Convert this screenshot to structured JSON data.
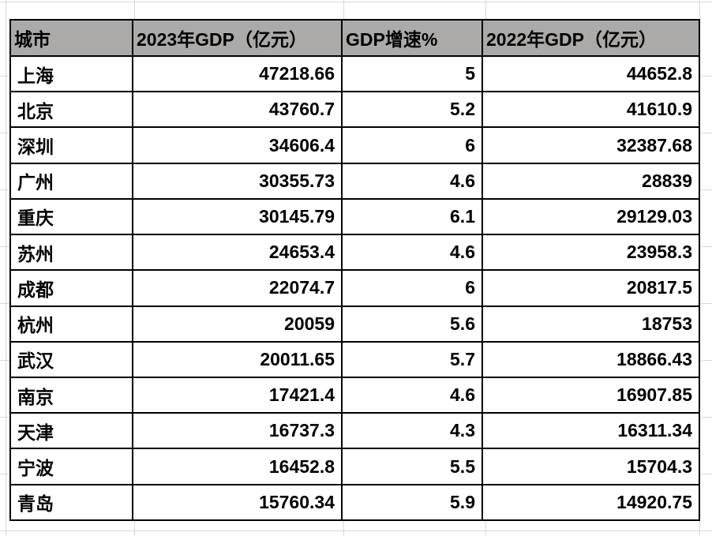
{
  "table": {
    "columns": [
      "城市",
      "2023年GDP（亿元）",
      "GDP增速%",
      "2022年GDP（亿元）"
    ],
    "rows": [
      [
        "上海",
        "47218.66",
        "5",
        "44652.8"
      ],
      [
        "北京",
        "43760.7",
        "5.2",
        "41610.9"
      ],
      [
        "深圳",
        "34606.4",
        "6",
        "32387.68"
      ],
      [
        "广州",
        "30355.73",
        "4.6",
        "28839"
      ],
      [
        "重庆",
        "30145.79",
        "6.1",
        "29129.03"
      ],
      [
        "苏州",
        "24653.4",
        "4.6",
        "23958.3"
      ],
      [
        "成都",
        "22074.7",
        "6",
        "20817.5"
      ],
      [
        "杭州",
        "20059",
        "5.6",
        "18753"
      ],
      [
        "武汉",
        "20011.65",
        "5.7",
        "18866.43"
      ],
      [
        "南京",
        "17421.4",
        "4.6",
        "16907.85"
      ],
      [
        "天津",
        "16737.3",
        "4.3",
        "16311.34"
      ],
      [
        "宁波",
        "16452.8",
        "5.5",
        "15704.3"
      ],
      [
        "青岛",
        "15760.34",
        "5.9",
        "14920.75"
      ]
    ],
    "colors": {
      "header_bg": "#acaaa9",
      "border": "#000000",
      "gridline": "#d9d9d9"
    }
  }
}
